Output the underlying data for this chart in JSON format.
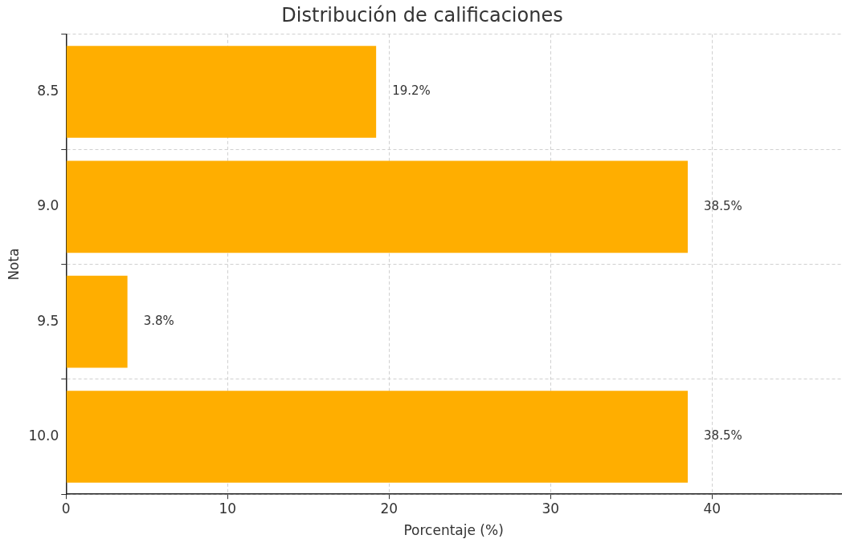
{
  "chart_data": {
    "type": "bar",
    "orientation": "horizontal",
    "title": "Distribución de calificaciones",
    "xlabel": "Porcentaje (%)",
    "ylabel": "Nota",
    "categories": [
      "8.5",
      "9.0",
      "9.5",
      "10.0"
    ],
    "values": [
      19.2,
      38.5,
      3.8,
      38.5
    ],
    "value_labels": [
      "19.2%",
      "38.5%",
      "3.8%",
      "38.5%"
    ],
    "color": "#ffae00",
    "xlim": [
      0,
      48
    ],
    "xticks": [
      0,
      10,
      20,
      30,
      40
    ],
    "grid": true
  }
}
